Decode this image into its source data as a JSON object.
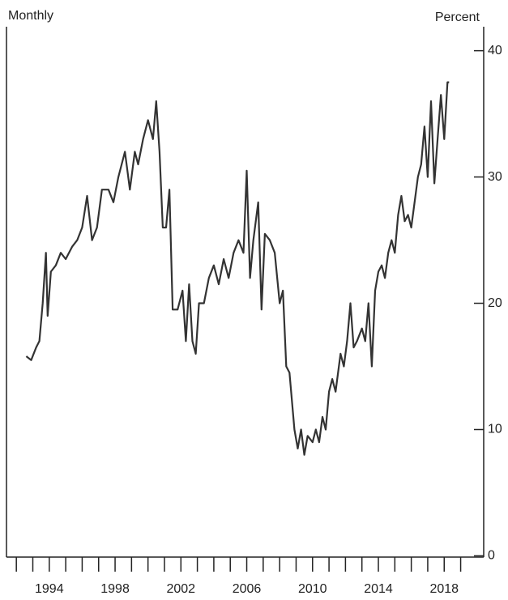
{
  "chart_data": {
    "type": "line",
    "left_label": "Monthly",
    "right_label": "Percent",
    "x": [
      1992.6,
      1992.9,
      1993.2,
      1993.4,
      1993.6,
      1993.8,
      1993.9,
      1994.1,
      1994.4,
      1994.7,
      1995.0,
      1995.4,
      1995.7,
      1996.0,
      1996.3,
      1996.6,
      1996.9,
      1997.2,
      1997.6,
      1997.9,
      1998.2,
      1998.6,
      1998.9,
      1999.2,
      1999.4,
      1999.7,
      2000.0,
      2000.3,
      2000.5,
      2000.7,
      2000.9,
      2001.1,
      2001.3,
      2001.5,
      2001.8,
      2002.1,
      2002.3,
      2002.5,
      2002.7,
      2002.9,
      2003.1,
      2003.4,
      2003.7,
      2004.0,
      2004.3,
      2004.6,
      2004.9,
      2005.2,
      2005.5,
      2005.8,
      2006.0,
      2006.2,
      2006.4,
      2006.7,
      2006.9,
      2007.1,
      2007.4,
      2007.7,
      2008.0,
      2008.2,
      2008.4,
      2008.6,
      2008.9,
      2009.1,
      2009.3,
      2009.5,
      2009.7,
      2010.0,
      2010.2,
      2010.4,
      2010.6,
      2010.8,
      2011.0,
      2011.2,
      2011.4,
      2011.7,
      2011.9,
      2012.1,
      2012.3,
      2012.5,
      2012.7,
      2013.0,
      2013.2,
      2013.4,
      2013.6,
      2013.8,
      2014.0,
      2014.2,
      2014.4,
      2014.6,
      2014.8,
      2015.0,
      2015.2,
      2015.4,
      2015.6,
      2015.8,
      2016.0,
      2016.2,
      2016.4,
      2016.6,
      2016.8,
      2017.0,
      2017.2,
      2017.4,
      2017.6,
      2017.8,
      2018.0,
      2018.2,
      2018.3
    ],
    "series": [
      {
        "color": "#333333",
        "values": [
          15.8,
          15.5,
          16.5,
          17,
          20,
          24,
          19,
          22.5,
          23,
          24,
          23.5,
          24.5,
          25,
          26,
          28.5,
          25,
          26,
          29,
          29,
          28,
          30,
          32,
          29,
          32,
          31,
          33,
          34.5,
          33,
          36,
          32,
          26,
          26,
          29,
          19.5,
          19.5,
          21,
          17,
          21.5,
          17,
          16,
          20,
          20,
          22,
          23,
          21.5,
          23.5,
          22,
          24,
          25,
          24,
          30.5,
          22,
          25,
          28,
          19.5,
          25.5,
          25,
          24,
          20,
          21,
          15,
          14.5,
          10,
          8.5,
          10,
          8,
          9.5,
          9,
          10,
          9,
          11,
          10,
          13,
          14,
          13,
          16,
          15,
          17,
          20,
          16.5,
          17,
          18,
          17,
          20,
          15,
          21,
          22.5,
          23,
          22,
          24,
          25,
          24,
          27,
          28.5,
          26.5,
          27,
          26,
          28,
          30,
          31,
          34,
          30,
          36,
          29.5,
          33,
          36.5,
          33,
          37.5,
          37.5
        ]
      }
    ],
    "xlim": [
      1991.4,
      2020.4
    ],
    "xticks": [
      1994,
      1998,
      2002,
      2006,
      2010,
      2014,
      2018
    ],
    "xminorticks": [
      1992,
      1993,
      1995,
      1996,
      1997,
      1999,
      2000,
      2001,
      2003,
      2004,
      2005,
      2007,
      2008,
      2009,
      2011,
      2012,
      2013,
      2015,
      2016,
      2017,
      2019
    ],
    "ylim": [
      -0.1,
      41.9
    ],
    "yticks": [
      0,
      10,
      20,
      30,
      40
    ],
    "y_axis_side": "right"
  }
}
